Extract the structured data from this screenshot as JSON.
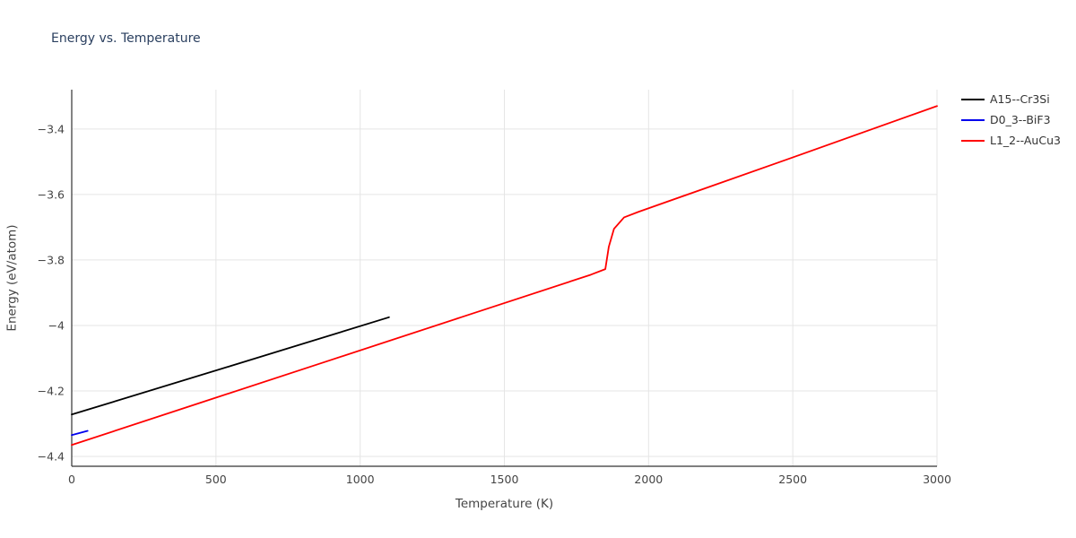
{
  "chart_data": {
    "type": "line",
    "title": "Energy vs. Temperature",
    "xlabel": "Temperature (K)",
    "ylabel": "Energy (eV/atom)",
    "xlim": [
      0,
      3000
    ],
    "ylim": [
      -4.43,
      -3.28
    ],
    "x_ticks": [
      0,
      500,
      1000,
      1500,
      2000,
      2500,
      3000
    ],
    "x_tick_labels": [
      "0",
      "500",
      "1000",
      "1500",
      "2000",
      "2500",
      "3000"
    ],
    "y_ticks": [
      -4.4,
      -4.2,
      -4.0,
      -3.8,
      -3.6,
      -3.4
    ],
    "y_tick_labels": [
      "−4.4",
      "−4.2",
      "−4",
      "−3.8",
      "−3.6",
      "−3.4"
    ],
    "grid": true,
    "grid_color": "#e5e5e5",
    "axis_color": "#333333",
    "tick_label_color": "#444444",
    "title_color": "#2a3f5f",
    "legend_position": "top-right",
    "series": [
      {
        "name": "A15--Cr3Si",
        "color": "#000000",
        "points": [
          [
            0,
            -4.272
          ],
          [
            550,
            -4.124
          ],
          [
            1100,
            -3.975
          ]
        ]
      },
      {
        "name": "D0_3--BiF3",
        "color": "#0000ee",
        "points": [
          [
            0,
            -4.335
          ],
          [
            55,
            -4.322
          ]
        ]
      },
      {
        "name": "L1_2--AuCu3",
        "color": "#ff0000",
        "points": [
          [
            0,
            -4.365
          ],
          [
            450,
            -4.235
          ],
          [
            900,
            -4.105
          ],
          [
            1350,
            -3.975
          ],
          [
            1800,
            -3.845
          ],
          [
            1850,
            -3.828
          ],
          [
            1862,
            -3.76
          ],
          [
            1880,
            -3.705
          ],
          [
            1915,
            -3.67
          ],
          [
            1965,
            -3.653
          ],
          [
            2480,
            -3.493
          ],
          [
            3000,
            -3.33
          ]
        ]
      }
    ]
  }
}
